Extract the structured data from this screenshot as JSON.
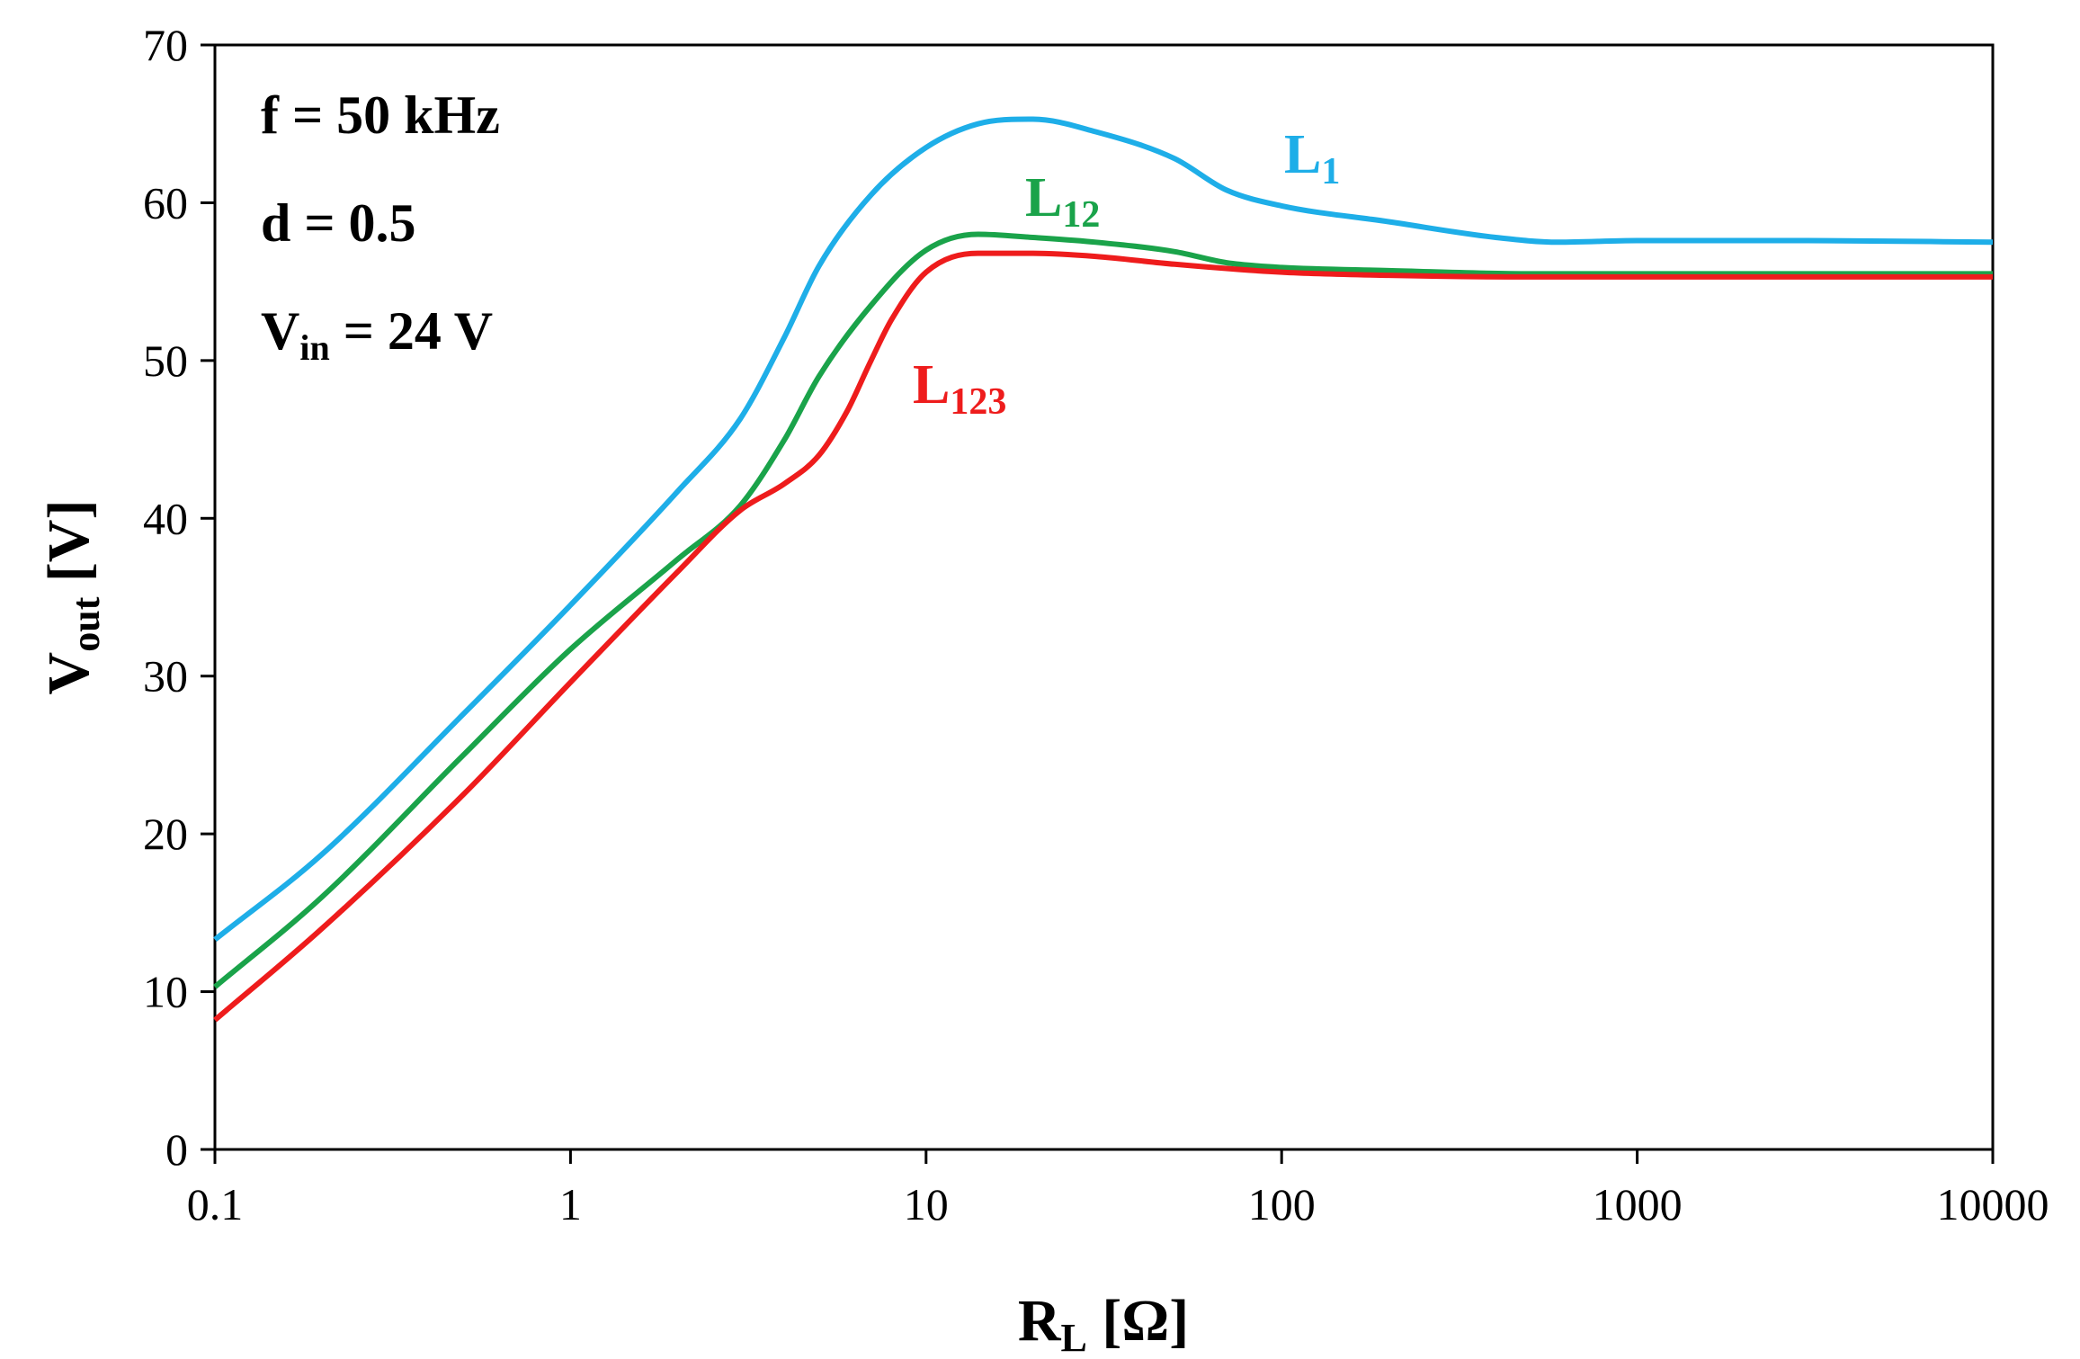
{
  "chart_data": {
    "type": "line",
    "xscale": "log",
    "xlim": [
      0.1,
      10000
    ],
    "ylim": [
      0,
      70
    ],
    "grid": false,
    "xticks": [
      "0.1",
      "1",
      "10",
      "100",
      "1000",
      "10000"
    ],
    "yticks": [
      "0",
      "10",
      "20",
      "30",
      "40",
      "50",
      "60",
      "70"
    ],
    "xlabel": {
      "main": "R",
      "sub": "L",
      "unit": " [Ω]"
    },
    "ylabel": {
      "main": "V",
      "sub": "out",
      "unit": " [V]"
    },
    "annotations": [
      {
        "main": "f = 50 kHz",
        "sub": "",
        "rest": ""
      },
      {
        "main": "d = 0.5",
        "sub": "",
        "rest": ""
      },
      {
        "main": "V",
        "sub": "in",
        "rest": " = 24 V"
      }
    ],
    "series": [
      {
        "name": "L1",
        "label_main": "L",
        "label_sub": "1",
        "color": "#1eaee8",
        "x": [
          0.1,
          0.2,
          0.5,
          1,
          2,
          3,
          4,
          5,
          7,
          10,
          14,
          20,
          30,
          50,
          70,
          100,
          200,
          400,
          600,
          1000,
          3000,
          10000
        ],
        "y": [
          13.3,
          18.7,
          27.6,
          34.5,
          41.7,
          46.3,
          51.5,
          56.0,
          60.5,
          63.5,
          65.0,
          65.3,
          64.5,
          62.8,
          60.8,
          59.8,
          58.8,
          57.8,
          57.5,
          57.6,
          57.6,
          57.5
        ]
      },
      {
        "name": "L12",
        "label_main": "L",
        "label_sub": "12",
        "color": "#1aa34a",
        "x": [
          0.1,
          0.2,
          0.5,
          1,
          2,
          3,
          4,
          5,
          7,
          10,
          14,
          20,
          30,
          50,
          70,
          100,
          200,
          500,
          1000,
          10000
        ],
        "y": [
          10.3,
          16.0,
          25.0,
          31.7,
          37.4,
          40.8,
          45.0,
          49.0,
          53.5,
          57.0,
          58.0,
          57.8,
          57.5,
          56.9,
          56.2,
          55.9,
          55.7,
          55.5,
          55.5,
          55.5
        ]
      },
      {
        "name": "L123",
        "label_main": "L",
        "label_sub": "123",
        "color": "#ee1c1c",
        "x": [
          0.1,
          0.2,
          0.5,
          1,
          2,
          3,
          4,
          5,
          6,
          7,
          8,
          10,
          14,
          20,
          30,
          50,
          100,
          200,
          500,
          1000,
          10000
        ],
        "y": [
          8.2,
          14.0,
          22.5,
          29.6,
          36.6,
          40.5,
          42.2,
          44.0,
          46.8,
          50.0,
          52.6,
          55.6,
          56.8,
          56.8,
          56.6,
          56.1,
          55.6,
          55.4,
          55.3,
          55.3,
          55.3
        ]
      }
    ]
  }
}
